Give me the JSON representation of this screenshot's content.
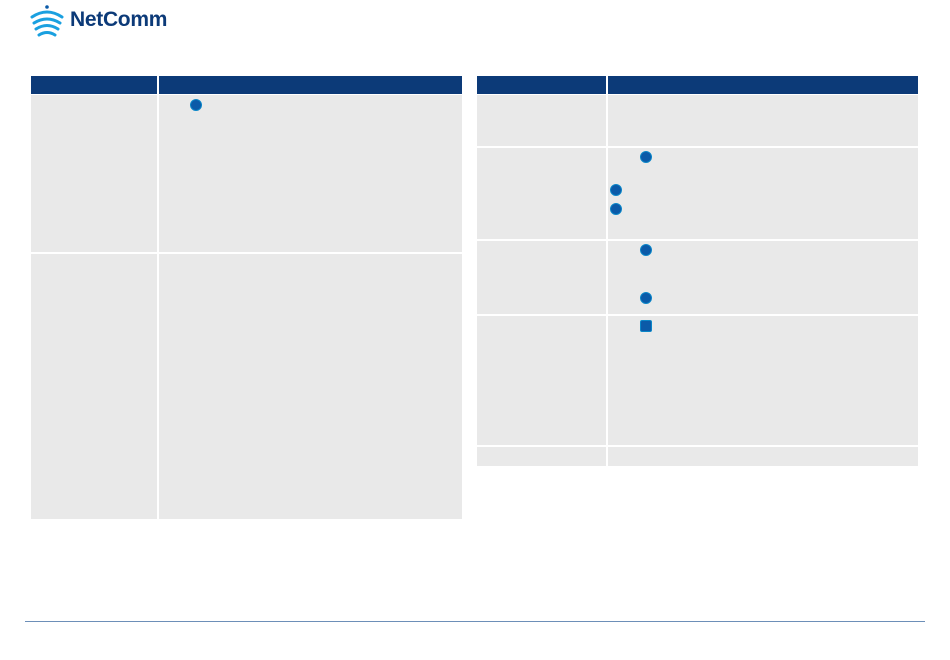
{
  "header": {
    "logo": "NetComm"
  }
}
